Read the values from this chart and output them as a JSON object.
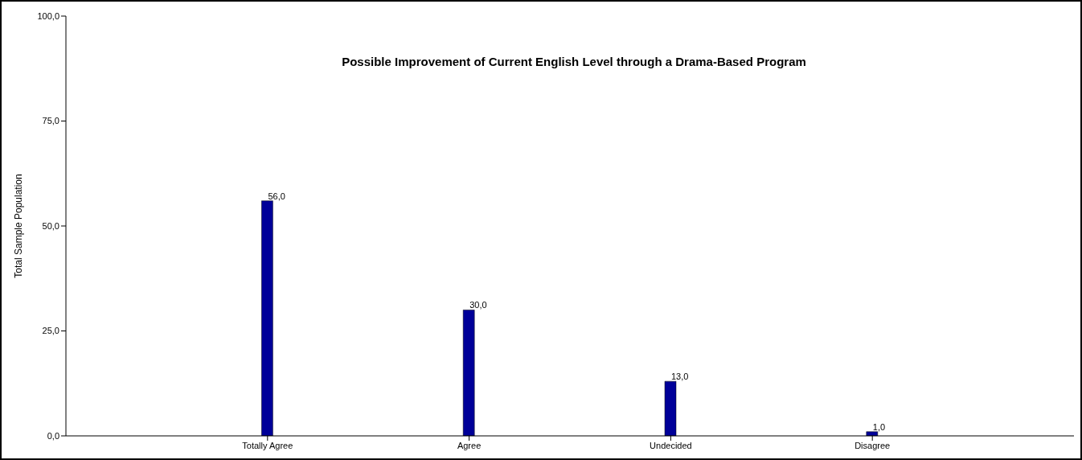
{
  "chart_data": {
    "type": "bar",
    "title": "Possible Improvement of Current English Level through a Drama-Based Program",
    "ylabel": "Total Sample Population",
    "categories": [
      "Totally Agree",
      "Agree",
      "Undecided",
      "Disagree"
    ],
    "values": [
      56,
      30,
      13,
      1
    ],
    "value_labels": [
      "56,0",
      "30,0",
      "13,0",
      "1,0"
    ],
    "color": "#000099",
    "ylim": [
      0,
      100
    ],
    "yticks": [
      {
        "value": 0,
        "label": "0,0"
      },
      {
        "value": 25,
        "label": "25,0"
      },
      {
        "value": 50,
        "label": "50,0"
      },
      {
        "value": 75,
        "label": "75,0"
      },
      {
        "value": 100,
        "label": "100,0"
      }
    ],
    "grid": false,
    "legend": false
  }
}
